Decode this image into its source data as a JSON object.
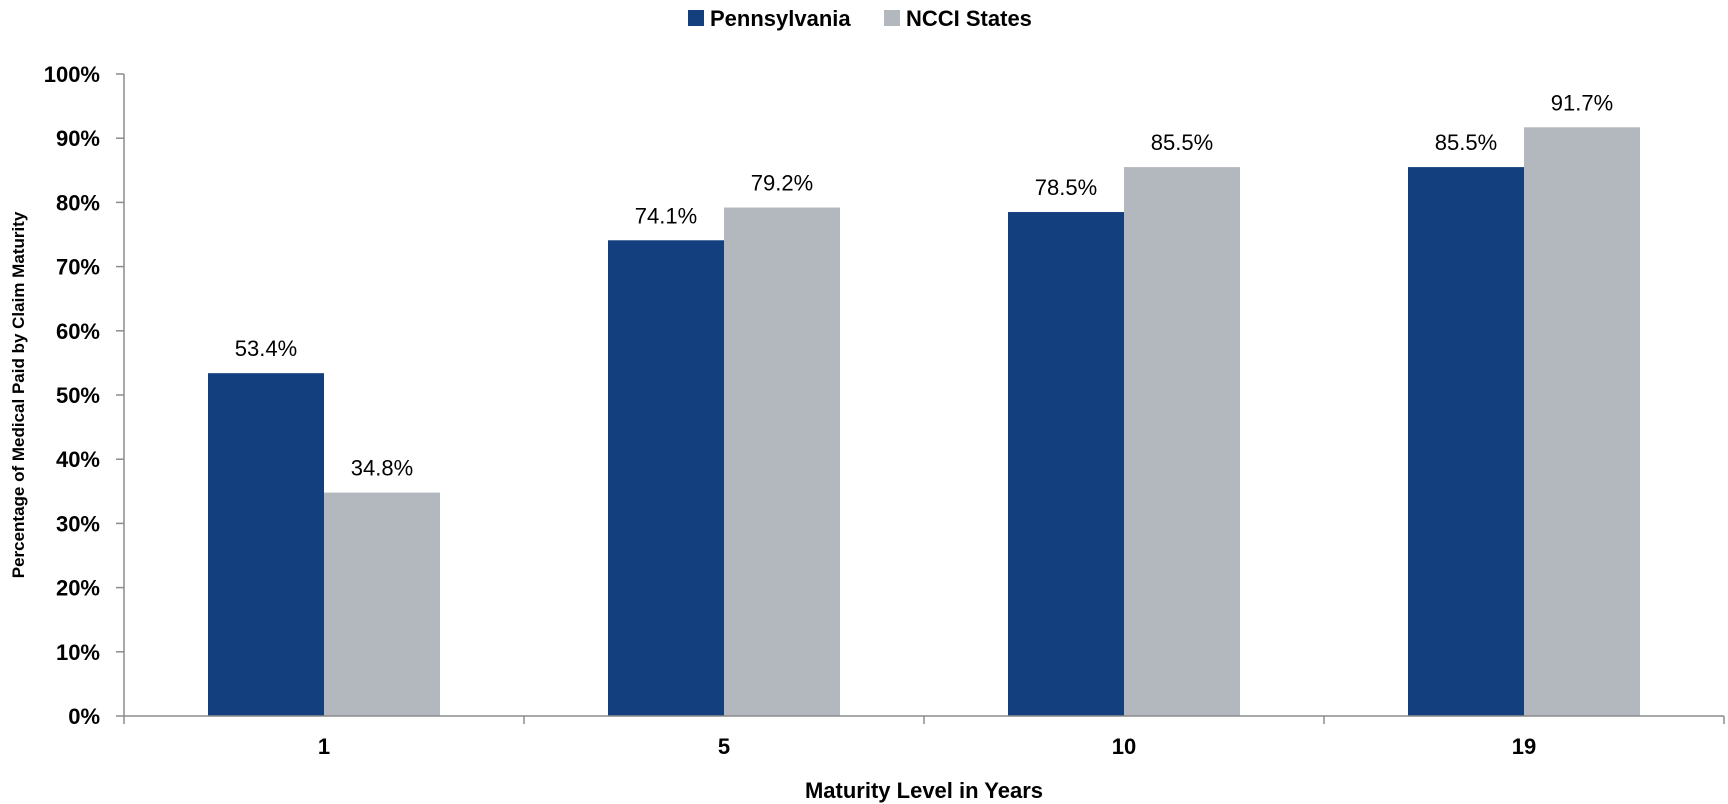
{
  "colors": {
    "series_0": "#143f7e",
    "series_1": "#b3b7be",
    "axis": "#8c8c8c"
  },
  "chart_data": {
    "type": "bar",
    "title": "",
    "xlabel": "Maturity Level in Years",
    "ylabel": "Percentage of Medical Paid by Claim Maturity",
    "categories": [
      "1",
      "5",
      "10",
      "19"
    ],
    "series": [
      {
        "name": "Pennsylvania",
        "values": [
          53.4,
          74.1,
          78.5,
          85.5
        ]
      },
      {
        "name": "NCCI States",
        "values": [
          34.8,
          79.2,
          85.5,
          91.7
        ]
      }
    ],
    "data_labels": [
      [
        "53.4%",
        "74.1%",
        "78.5%",
        "85.5%"
      ],
      [
        "34.8%",
        "79.2%",
        "85.5%",
        "91.7%"
      ]
    ],
    "ylim": [
      0,
      100
    ],
    "ytick_values": [
      0,
      10,
      20,
      30,
      40,
      50,
      60,
      70,
      80,
      90,
      100
    ],
    "ytick_labels": [
      "0%",
      "10%",
      "20%",
      "30%",
      "40%",
      "50%",
      "60%",
      "70%",
      "80%",
      "90%",
      "100%"
    ],
    "grid": false,
    "legend_position": "top-center"
  }
}
